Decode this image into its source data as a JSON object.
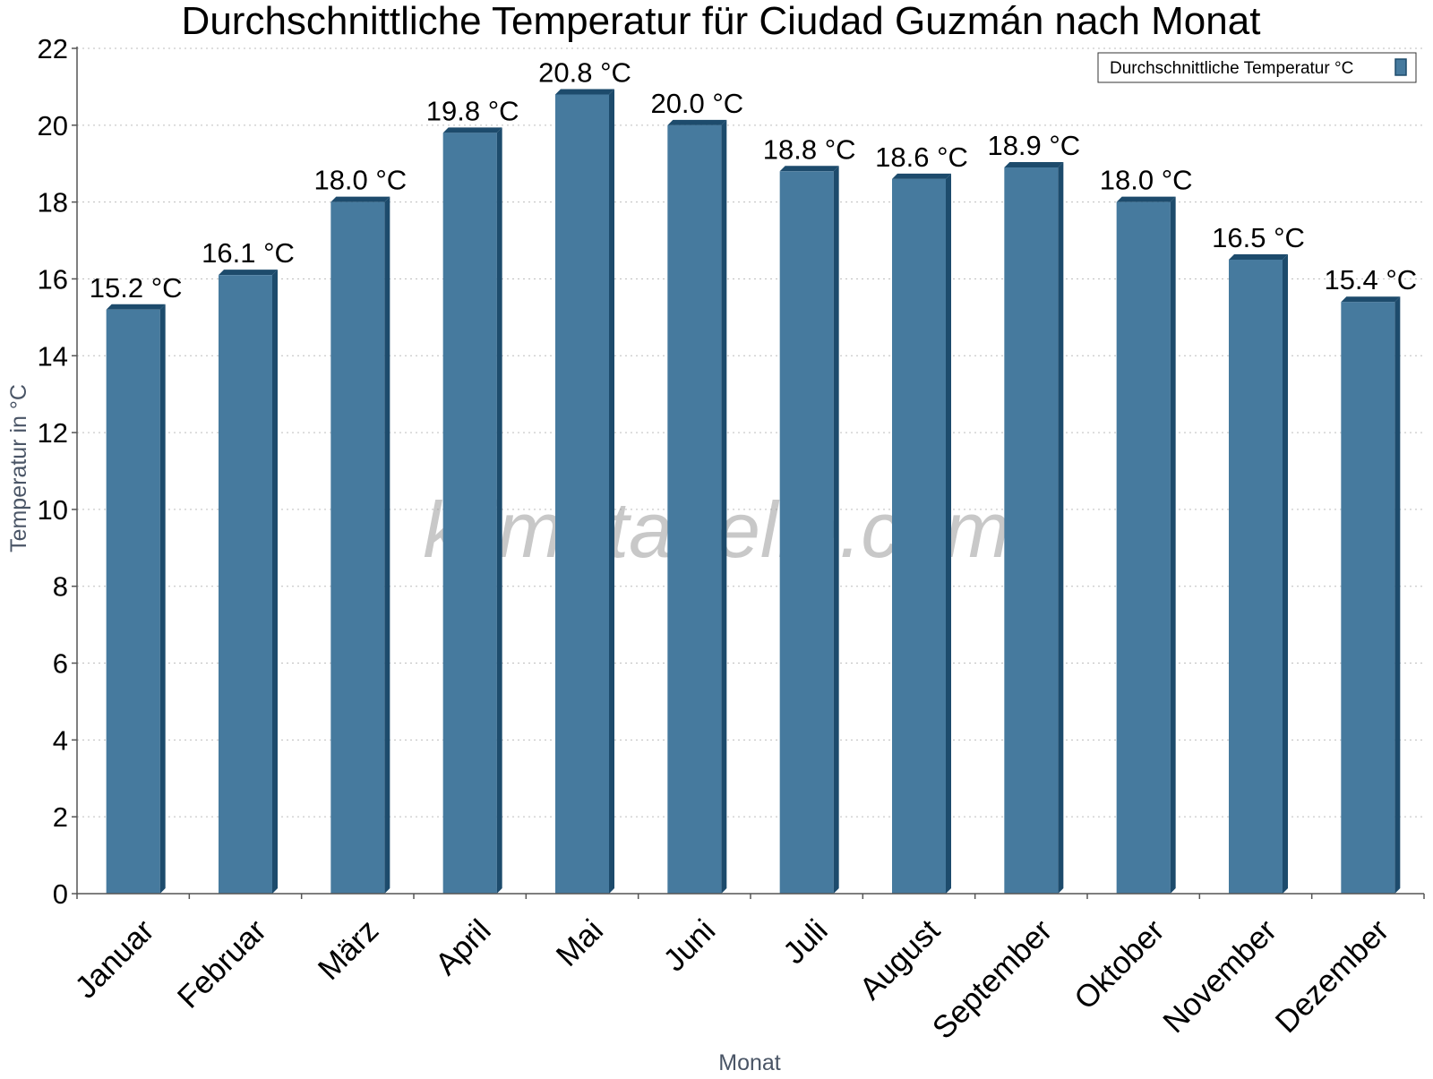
{
  "chart_data": {
    "type": "bar",
    "title": "Durchschnittliche Temperatur für Ciudad Guzmán nach Monat",
    "xlabel": "Monat",
    "ylabel": "Temperatur in °C",
    "categories": [
      "Januar",
      "Februar",
      "März",
      "April",
      "Mai",
      "Juni",
      "Juli",
      "August",
      "September",
      "Oktober",
      "November",
      "Dezember"
    ],
    "series": [
      {
        "name": "Durchschnittliche Temperatur °C",
        "values": [
          15.2,
          16.1,
          18.0,
          19.8,
          20.8,
          20.0,
          18.8,
          18.6,
          18.9,
          18.0,
          16.5,
          15.4
        ],
        "data_labels": [
          "15.2 °C",
          "16.1 °C",
          "18.0 °C",
          "19.8 °C",
          "20.8 °C",
          "20.0 °C",
          "18.8 °C",
          "18.6 °C",
          "18.9 °C",
          "18.0 °C",
          "16.5 °C",
          "15.4 °C"
        ],
        "color": "#467a9e",
        "side_color": "#1d4b6c"
      }
    ],
    "ylim": [
      0,
      22
    ],
    "yticks": [
      0,
      2,
      4,
      6,
      8,
      10,
      12,
      14,
      16,
      18,
      20,
      22
    ],
    "grid": true,
    "legend_position": "top-right"
  },
  "watermark": "klimatabelle.com"
}
